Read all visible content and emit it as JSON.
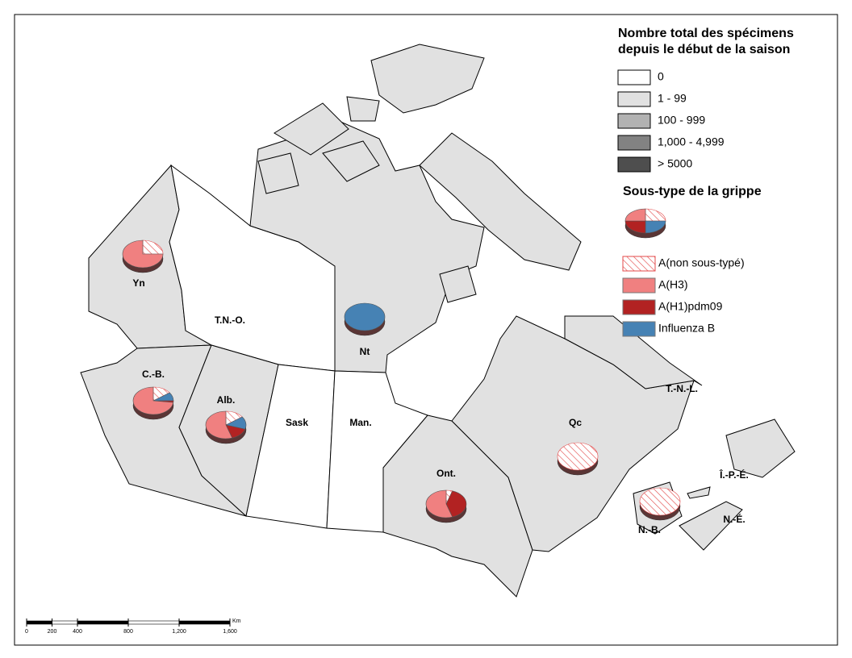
{
  "legend": {
    "title_lines": [
      "Nombre total des spécimens",
      "depuis le début de la saison"
    ],
    "classes": [
      {
        "label": "0",
        "color": "#ffffff"
      },
      {
        "label": "1 - 99",
        "color": "#e1e1e1"
      },
      {
        "label": "100 - 999",
        "color": "#b2b2b2"
      },
      {
        "label": "1,000 - 4,999",
        "color": "#828282"
      },
      {
        "label": "> 5000",
        "color": "#4e4e4e"
      }
    ]
  },
  "subtype_legend": {
    "title": "Sous-type de la grippe",
    "items": [
      {
        "label": "A(non sous-typé)",
        "color": "hatch"
      },
      {
        "label": "A(H3)",
        "color": "#f08080"
      },
      {
        "label": "A(H1)pdm09",
        "color": "#b22222"
      },
      {
        "label": "Influenza B",
        "color": "#4682b4"
      }
    ]
  },
  "regions": [
    {
      "label": "Yn",
      "class": 1,
      "pie": [
        25,
        75,
        0,
        0
      ]
    },
    {
      "label": "T.N.-O.",
      "class": 0
    },
    {
      "label": "Nt",
      "class": 1,
      "pie": [
        0,
        0,
        0,
        100
      ]
    },
    {
      "label": "C.-B.",
      "class": 1,
      "pie": [
        15,
        73,
        2,
        10
      ]
    },
    {
      "label": "Alb.",
      "class": 1,
      "pie": [
        15,
        55,
        15,
        15
      ]
    },
    {
      "label": "Sask",
      "class": 0
    },
    {
      "label": "Man.",
      "class": 0
    },
    {
      "label": "Ont.",
      "class": 1,
      "pie": [
        5,
        55,
        40,
        0
      ]
    },
    {
      "label": "Qc",
      "class": 1,
      "pie": [
        100,
        0,
        0,
        0
      ]
    },
    {
      "label": "T.-N.-L.",
      "class": 1
    },
    {
      "label": "Î.-P.-É.",
      "class": 1
    },
    {
      "label": "N.-B.",
      "class": 1,
      "pie": [
        100,
        0,
        0,
        0
      ]
    },
    {
      "label": "N.-É.",
      "class": 1
    }
  ],
  "scale_bar": {
    "unit": "Km",
    "ticks": [
      0,
      200,
      400,
      800,
      {
        "value": 1200,
        "label": "1,200"
      },
      {
        "value": 1600,
        "label": "1,600"
      }
    ]
  }
}
